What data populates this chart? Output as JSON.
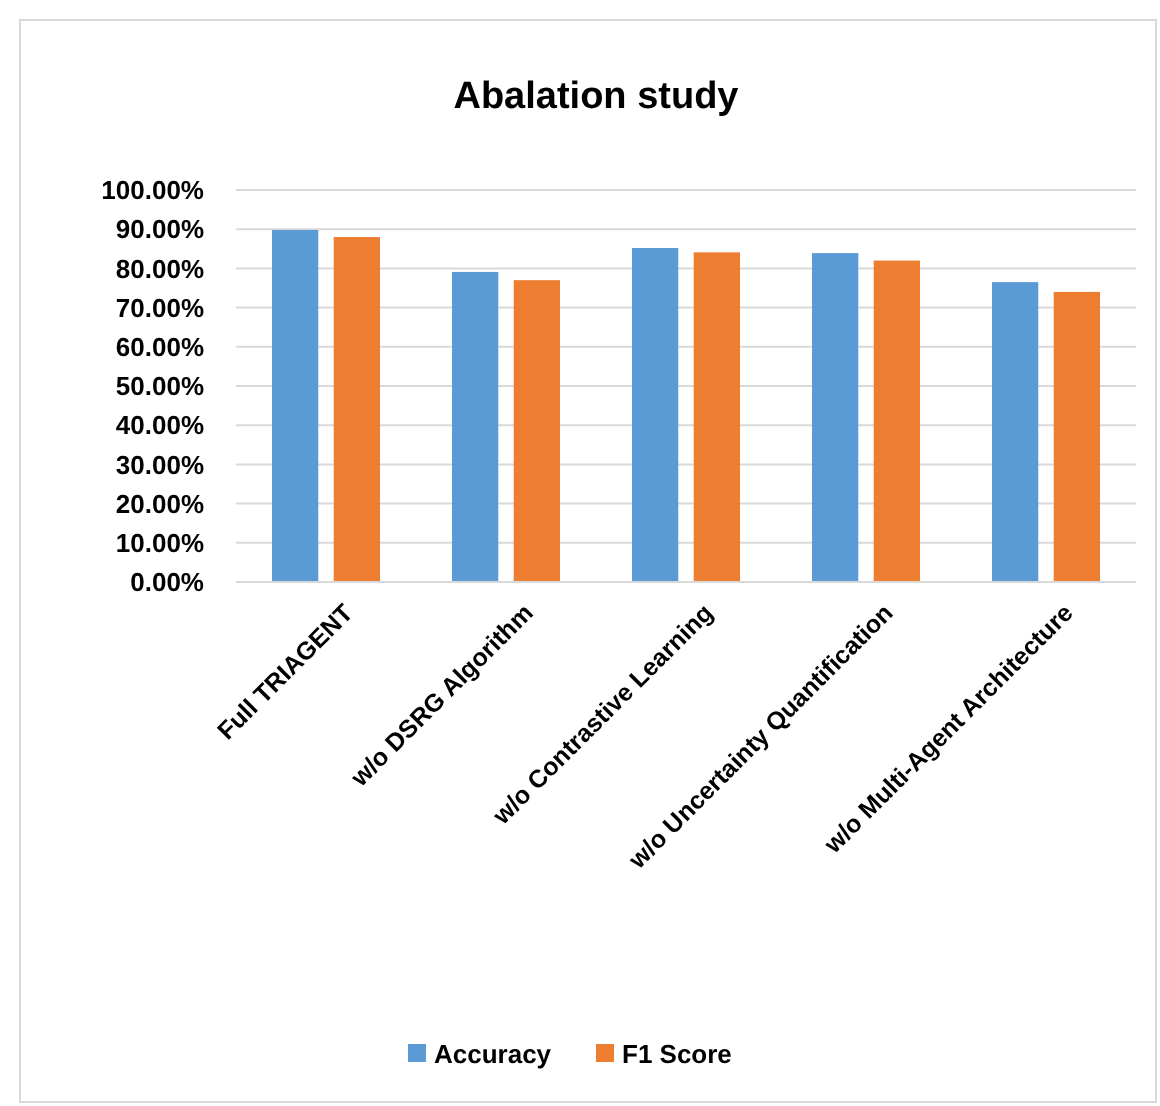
{
  "chart_data": {
    "type": "bar",
    "title": "Abalation study",
    "categories": [
      "Full TRIAGENT",
      "w/o DSRG Algorithm",
      "w/o Contrastive Learning",
      "w/o Uncertainty Quantification",
      "w/o Multi-Agent Architecture"
    ],
    "series": [
      {
        "name": "Accuracy",
        "color": "#5b9bd5",
        "values": [
          89.8,
          79.1,
          85.2,
          83.9,
          76.5
        ]
      },
      {
        "name": "F1 Score",
        "color": "#ed7d31",
        "values": [
          88.0,
          77.0,
          84.1,
          82.0,
          74.0
        ]
      }
    ],
    "ylim": [
      0,
      100
    ],
    "yticks": [
      {
        "value": 0,
        "label": "0.00%"
      },
      {
        "value": 10,
        "label": "10.00%"
      },
      {
        "value": 20,
        "label": "20.00%"
      },
      {
        "value": 30,
        "label": "30.00%"
      },
      {
        "value": 40,
        "label": "40.00%"
      },
      {
        "value": 50,
        "label": "50.00%"
      },
      {
        "value": 60,
        "label": "60.00%"
      },
      {
        "value": 70,
        "label": "70.00%"
      },
      {
        "value": 80,
        "label": "80.00%"
      },
      {
        "value": 90,
        "label": "90.00%"
      },
      {
        "value": 100,
        "label": "100.00%"
      }
    ],
    "grid": "y",
    "legend": "bottom"
  }
}
